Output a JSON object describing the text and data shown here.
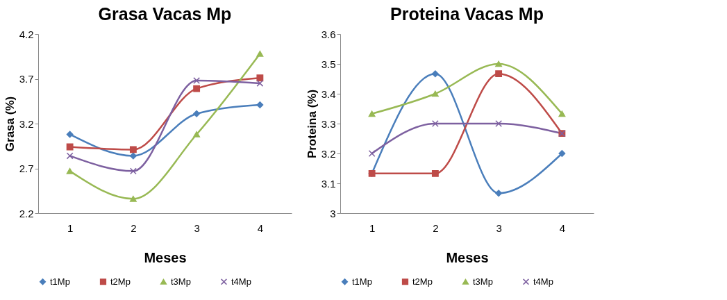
{
  "chart_data": [
    {
      "type": "line",
      "title": "Grasa Vacas Mp",
      "xlabel": "Meses",
      "ylabel": "Grasa (%)",
      "categories": [
        "1",
        "2",
        "3",
        "4"
      ],
      "ylim": [
        2.2,
        4.2
      ],
      "yticks": [
        2.2,
        2.7,
        3.2,
        3.7,
        4.2
      ],
      "grid": false,
      "legend": "bottom",
      "series": [
        {
          "name": "t1Mp",
          "color": "#4a7ebb",
          "marker": "diamond",
          "values": [
            3.08,
            2.84,
            3.31,
            3.41
          ]
        },
        {
          "name": "t2Mp",
          "color": "#be4b48",
          "marker": "square",
          "values": [
            2.94,
            2.91,
            3.59,
            3.71
          ]
        },
        {
          "name": "t3Mp",
          "color": "#98b954",
          "marker": "triangle",
          "values": [
            2.67,
            2.36,
            3.08,
            3.98
          ]
        },
        {
          "name": "t4Mp",
          "color": "#7d60a0",
          "marker": "cross",
          "values": [
            2.84,
            2.67,
            3.68,
            3.65
          ]
        }
      ]
    },
    {
      "type": "line",
      "title": "Proteina  Vacas Mp",
      "xlabel": "Meses",
      "ylabel": "Proteina (%)",
      "categories": [
        "1",
        "2",
        "3",
        "4"
      ],
      "ylim": [
        3,
        3.6
      ],
      "yticks": [
        3,
        3.1,
        3.2,
        3.3,
        3.4,
        3.5,
        3.6
      ],
      "grid": false,
      "legend": "bottom",
      "series": [
        {
          "name": "t1Mp",
          "color": "#4a7ebb",
          "marker": "diamond",
          "values": [
            3.133,
            3.467,
            3.067,
            3.2
          ]
        },
        {
          "name": "t2Mp",
          "color": "#be4b48",
          "marker": "square",
          "values": [
            3.133,
            3.133,
            3.467,
            3.267
          ]
        },
        {
          "name": "t3Mp",
          "color": "#98b954",
          "marker": "triangle",
          "values": [
            3.333,
            3.4,
            3.5,
            3.333
          ]
        },
        {
          "name": "t4Mp",
          "color": "#7d60a0",
          "marker": "cross",
          "values": [
            3.2,
            3.3,
            3.3,
            3.267
          ]
        }
      ]
    }
  ]
}
